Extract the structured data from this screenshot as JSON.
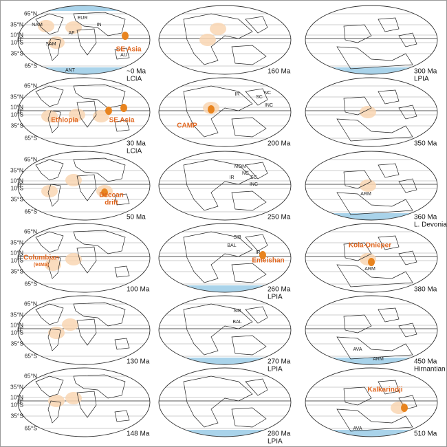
{
  "latitude_labels": [
    "65°N",
    "35°N",
    "10°N",
    "0°",
    "10°S",
    "35°S",
    "65°S"
  ],
  "panels": [
    {
      "age": "~0 Ma",
      "period": "LCIA",
      "regions": [
        "NAM",
        "EUR",
        "AF",
        "IN",
        "SAM",
        "AU",
        "ANT"
      ],
      "provinces": [
        "SE Asia"
      ]
    },
    {
      "age": "160 Ma",
      "regions": [],
      "provinces": []
    },
    {
      "age": "300 Ma",
      "period": "LPIA",
      "regions": [],
      "provinces": []
    },
    {
      "age": "30 Ma",
      "period": "LCIA",
      "regions": [],
      "provinces": [
        "Ethiopia",
        "SE Asia"
      ]
    },
    {
      "age": "200 Ma",
      "regions": [
        "IR",
        "SC",
        "NC",
        "INC"
      ],
      "provinces": [
        "CAMP"
      ]
    },
    {
      "age": "350 Ma",
      "regions": [],
      "provinces": []
    },
    {
      "age": "50 Ma",
      "regions": [],
      "provinces": [
        "Deccan",
        "drift"
      ]
    },
    {
      "age": "250 Ma",
      "regions": [
        "MON",
        "NC",
        "IR",
        "SC",
        "INC"
      ],
      "provinces": []
    },
    {
      "age": "360 Ma",
      "period": "L. Devonian",
      "regions": [
        "ARM"
      ],
      "provinces": []
    },
    {
      "age": "100 Ma",
      "regions": [],
      "provinces": [
        "Columbian",
        "(94Ma)"
      ]
    },
    {
      "age": "260 Ma",
      "period": "LPIA",
      "regions": [
        "SIB",
        "BAL",
        "IR"
      ],
      "provinces": [
        "Emeishan"
      ]
    },
    {
      "age": "380 Ma",
      "regions": [
        "ARM"
      ],
      "provinces": [
        "Kola-Dnieper"
      ]
    },
    {
      "age": "130 Ma",
      "regions": [],
      "provinces": []
    },
    {
      "age": "270 Ma",
      "period": "LPIA",
      "regions": [
        "SIB",
        "BAL"
      ],
      "provinces": []
    },
    {
      "age": "450 Ma",
      "period": "Hirnantian",
      "regions": [
        "AVA",
        "ARM"
      ],
      "provinces": []
    },
    {
      "age": "148 Ma",
      "regions": [],
      "provinces": []
    },
    {
      "age": "280 Ma",
      "period": "LPIA",
      "regions": [],
      "provinces": []
    },
    {
      "age": "510 Ma",
      "regions": [
        "AVA"
      ],
      "provinces": [
        "Kalkarindji"
      ]
    }
  ]
}
